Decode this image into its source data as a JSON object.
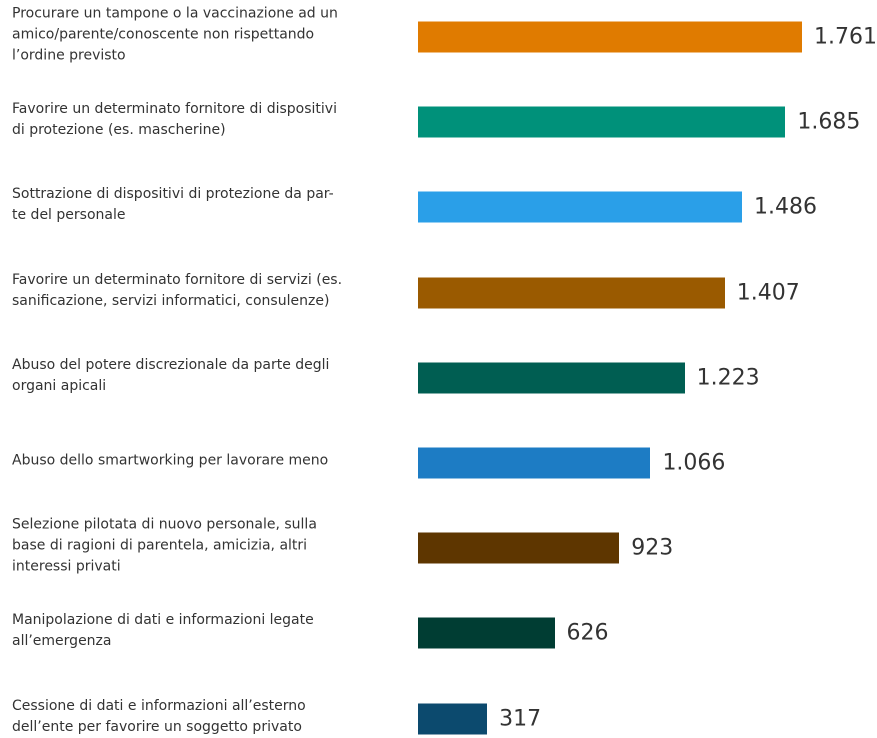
{
  "chart_data": {
    "type": "bar",
    "orientation": "horizontal",
    "categories": [
      "Procurare un tampone o la vaccinazione ad un\namico/parente/conoscente non rispettando\nl’ordine previsto",
      "Favorire un determinato fornitore di dispositivi\ndi protezione (es. mascherine)",
      "Sottrazione di dispositivi di protezione da par-\nte del personale",
      "Favorire un determinato fornitore di servizi (es.\nsanificazione, servizi informatici, consulenze)",
      "Abuso del potere discrezionale da parte degli\norgani apicali",
      "Abuso dello smartworking per lavorare meno",
      "Selezione pilotata di nuovo personale, sulla\nbase di ragioni di parentela, amicizia, altri\ninteressi privati",
      "Manipolazione di dati e informazioni legate\nall’emergenza",
      "Cessione di dati e informazioni all’esterno\ndell’ente per favorire un soggetto privato"
    ],
    "values": [
      1761,
      1685,
      1486,
      1407,
      1223,
      1066,
      923,
      626,
      317
    ],
    "value_labels": [
      "1.761",
      "1.685",
      "1.486",
      "1.407",
      "1.223",
      "1.066",
      "923",
      "626",
      "317"
    ],
    "colors": [
      "#e07b00",
      "#00917a",
      "#2a9fe8",
      "#9a5a00",
      "#005e52",
      "#1d7cc4",
      "#5e3600",
      "#003d33",
      "#0c4a6e"
    ]
  }
}
